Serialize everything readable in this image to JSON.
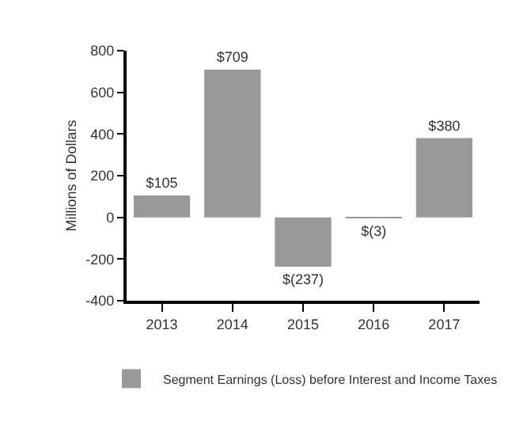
{
  "chart_data": {
    "type": "bar",
    "ylabel": "Millions of Dollars",
    "categories": [
      "2013",
      "2014",
      "2015",
      "2016",
      "2017"
    ],
    "series": [
      {
        "name": "Segment Earnings (Loss) before Interest and Income Taxes",
        "color": "#999999",
        "values": [
          105,
          709,
          -237,
          -3,
          380
        ],
        "value_labels": [
          "$105",
          "$709",
          "$(237)",
          "$(3)",
          "$380"
        ]
      }
    ],
    "ylim": [
      -400,
      800
    ],
    "yticks": [
      -400,
      -200,
      0,
      200,
      400,
      600,
      800
    ],
    "legend": "bottom"
  }
}
